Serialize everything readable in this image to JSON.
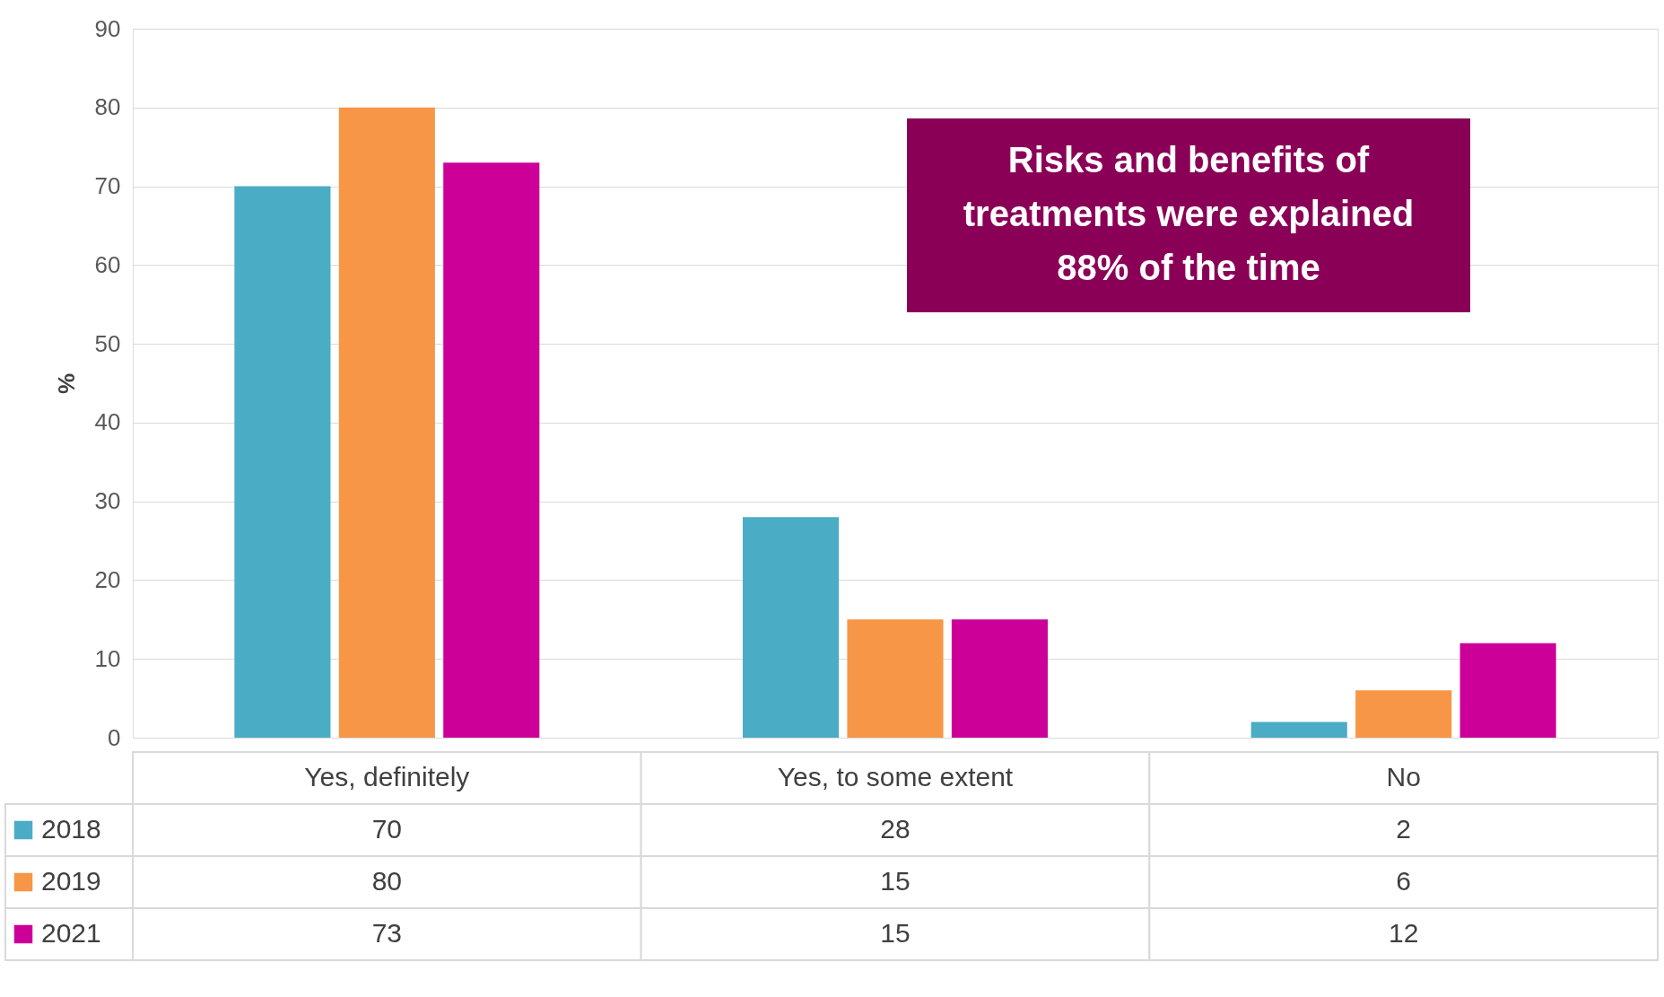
{
  "chart_data": {
    "type": "bar",
    "ylabel": "%",
    "categories": [
      "Yes, definitely",
      "Yes, to some extent",
      "No"
    ],
    "series": [
      {
        "name": "2018",
        "color": "#4bacc6",
        "values": [
          70,
          28,
          2
        ]
      },
      {
        "name": "2019",
        "color": "#f79646",
        "values": [
          80,
          15,
          6
        ]
      },
      {
        "name": "2021",
        "color": "#cc0099",
        "values": [
          73,
          15,
          12
        ]
      }
    ],
    "ylim": [
      0,
      90
    ],
    "yticks": [
      0,
      10,
      20,
      30,
      40,
      50,
      60,
      70,
      80,
      90
    ],
    "grid": "y",
    "legend": "bottom",
    "data_labels": true,
    "annotations": [
      "Risks and benefits of treatments were explained 88% of the time"
    ]
  }
}
